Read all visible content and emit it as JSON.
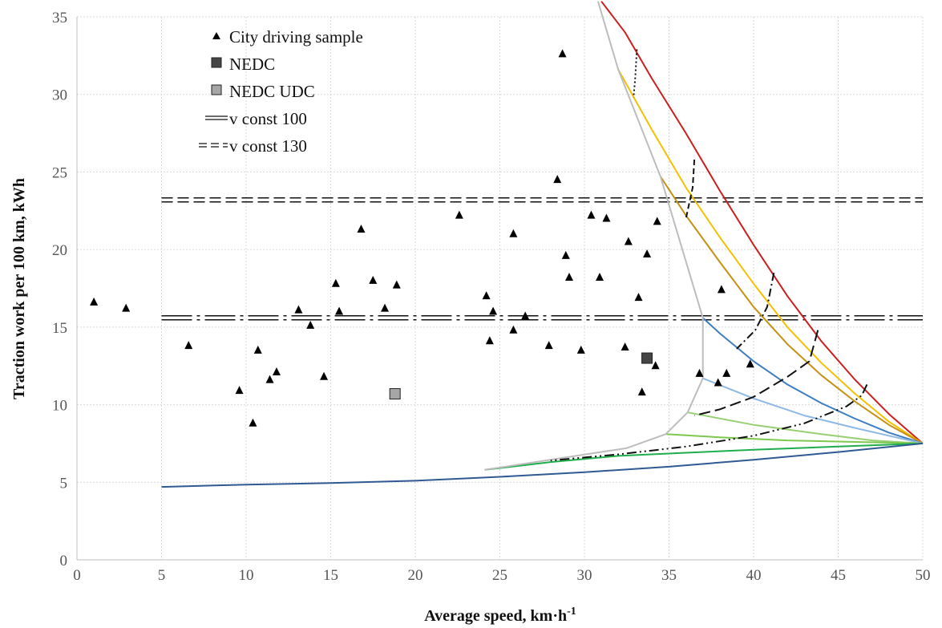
{
  "chart_data": {
    "type": "scatter",
    "xlabel": "Average speed, km·h",
    "xlabel_sup": "-1",
    "ylabel": "Traction work per 100 km, kWh",
    "xlim": [
      0,
      50
    ],
    "ylim": [
      0,
      35
    ],
    "x_ticks": [
      "0",
      "5",
      "10",
      "15",
      "20",
      "25",
      "30",
      "35",
      "40",
      "45",
      "50"
    ],
    "y_ticks": [
      "0",
      "5",
      "10",
      "15",
      "20",
      "25",
      "30",
      "35"
    ],
    "grid": true,
    "legend_position": "top-left",
    "legend": [
      {
        "label": "City driving sample",
        "marker": "triangle"
      },
      {
        "label": "NEDC",
        "marker": "square-dark"
      },
      {
        "label": "NEDC UDC",
        "marker": "square-light"
      },
      {
        "label": "v const 100",
        "marker": "double-line"
      },
      {
        "label": "v const 130",
        "marker": "double-dash"
      }
    ],
    "city_driving_sample": [
      [
        1.0,
        16.6
      ],
      [
        2.9,
        16.2
      ],
      [
        6.6,
        13.8
      ],
      [
        9.6,
        10.9
      ],
      [
        10.4,
        8.8
      ],
      [
        10.7,
        13.5
      ],
      [
        11.4,
        11.6
      ],
      [
        11.8,
        12.1
      ],
      [
        13.1,
        16.1
      ],
      [
        13.8,
        15.1
      ],
      [
        14.6,
        11.8
      ],
      [
        15.3,
        17.8
      ],
      [
        15.5,
        16.0
      ],
      [
        16.8,
        21.3
      ],
      [
        17.5,
        18.0
      ],
      [
        18.2,
        16.2
      ],
      [
        18.9,
        17.7
      ],
      [
        22.6,
        22.2
      ],
      [
        24.2,
        17.0
      ],
      [
        24.4,
        14.1
      ],
      [
        24.6,
        16.0
      ],
      [
        25.8,
        21.0
      ],
      [
        25.8,
        14.8
      ],
      [
        26.5,
        15.7
      ],
      [
        27.9,
        13.8
      ],
      [
        28.4,
        24.5
      ],
      [
        28.7,
        32.6
      ],
      [
        28.9,
        19.6
      ],
      [
        29.1,
        18.2
      ],
      [
        29.8,
        13.5
      ],
      [
        30.4,
        22.2
      ],
      [
        30.9,
        18.2
      ],
      [
        31.3,
        22.0
      ],
      [
        32.4,
        13.7
      ],
      [
        32.6,
        20.5
      ],
      [
        33.2,
        16.9
      ],
      [
        33.4,
        10.8
      ],
      [
        33.7,
        19.7
      ],
      [
        34.2,
        12.5
      ],
      [
        34.3,
        21.8
      ],
      [
        36.8,
        12.0
      ],
      [
        37.9,
        11.4
      ],
      [
        38.1,
        17.4
      ],
      [
        38.4,
        12.0
      ],
      [
        39.8,
        12.6
      ]
    ],
    "nedc": [
      33.7,
      13.0
    ],
    "nedc_udc": [
      18.8,
      10.7
    ],
    "v_const_100": 15.6,
    "v_const_130": 23.2,
    "colors": {
      "red": "#cc1f1f",
      "yellow": "#f5c000",
      "gold": "#c69214",
      "blue": "#3c7dc4",
      "light_blue": "#8fb8e4",
      "light_green": "#98cf72",
      "green_mid": "#7ec850",
      "green": "#1fae4c",
      "navy": "#2f5a93",
      "gray": "#bdbdbd",
      "black": "#111111",
      "nedc_fill": "#454545",
      "udc_fill": "#a6a6a6"
    },
    "curves": [
      {
        "color": "red",
        "points": [
          [
            31.0,
            36.0
          ],
          [
            32.4,
            34.0
          ],
          [
            34.0,
            31.0
          ],
          [
            36.0,
            27.5
          ],
          [
            38.0,
            23.8
          ],
          [
            40.0,
            20.3
          ],
          [
            42.0,
            17.0
          ],
          [
            44.0,
            14.1
          ],
          [
            46.0,
            11.6
          ],
          [
            48.0,
            9.4
          ],
          [
            50.0,
            7.5
          ]
        ]
      },
      {
        "color": "yellow",
        "points": [
          [
            32.0,
            31.6
          ],
          [
            34.0,
            27.7
          ],
          [
            36.0,
            24.0
          ],
          [
            38.0,
            20.8
          ],
          [
            40.0,
            17.8
          ],
          [
            42.0,
            15.0
          ],
          [
            44.0,
            12.7
          ],
          [
            46.0,
            10.7
          ],
          [
            48.0,
            8.9
          ],
          [
            50.0,
            7.5
          ]
        ]
      },
      {
        "color": "gold",
        "points": [
          [
            34.5,
            24.7
          ],
          [
            36.0,
            22.2
          ],
          [
            38.0,
            19.2
          ],
          [
            40.0,
            16.3
          ],
          [
            42.0,
            13.9
          ],
          [
            44.0,
            11.9
          ],
          [
            46.0,
            10.2
          ],
          [
            48.0,
            8.7
          ],
          [
            50.0,
            7.5
          ]
        ]
      },
      {
        "color": "blue",
        "points": [
          [
            37.0,
            15.6
          ],
          [
            38.0,
            14.6
          ],
          [
            40.0,
            12.8
          ],
          [
            42.0,
            11.3
          ],
          [
            44.0,
            10.1
          ],
          [
            46.0,
            9.1
          ],
          [
            48.0,
            8.2
          ],
          [
            50.0,
            7.5
          ]
        ]
      },
      {
        "color": "light_blue",
        "points": [
          [
            37.0,
            11.7
          ],
          [
            40.0,
            10.4
          ],
          [
            43.0,
            9.3
          ],
          [
            46.0,
            8.5
          ],
          [
            48.0,
            8.0
          ],
          [
            50.0,
            7.5
          ]
        ]
      },
      {
        "color": "light_green",
        "points": [
          [
            36.1,
            9.5
          ],
          [
            40.0,
            8.7
          ],
          [
            44.0,
            8.1
          ],
          [
            47.0,
            7.7
          ],
          [
            50.0,
            7.5
          ]
        ]
      },
      {
        "color": "green_mid",
        "points": [
          [
            34.8,
            8.1
          ],
          [
            38.0,
            7.9
          ],
          [
            42.0,
            7.7
          ],
          [
            46.0,
            7.6
          ],
          [
            50.0,
            7.5
          ]
        ]
      },
      {
        "color": "green",
        "points": [
          [
            24.1,
            5.8
          ],
          [
            28.0,
            6.3
          ],
          [
            32.0,
            6.7
          ],
          [
            36.0,
            6.9
          ],
          [
            40.0,
            7.1
          ],
          [
            45.0,
            7.3
          ],
          [
            50.0,
            7.5
          ]
        ]
      },
      {
        "color": "navy",
        "points": [
          [
            5.0,
            4.7
          ],
          [
            10.0,
            4.85
          ],
          [
            15.0,
            4.95
          ],
          [
            20.0,
            5.1
          ],
          [
            25.0,
            5.35
          ],
          [
            30.0,
            5.65
          ],
          [
            35.0,
            6.0
          ],
          [
            40.0,
            6.45
          ],
          [
            45.0,
            6.95
          ],
          [
            50.0,
            7.5
          ]
        ]
      },
      {
        "color": "gray",
        "points": [
          [
            30.8,
            36.0
          ],
          [
            32.0,
            31.6
          ],
          [
            34.5,
            24.7
          ],
          [
            37.0,
            15.6
          ],
          [
            37.0,
            11.7
          ],
          [
            36.1,
            9.5
          ],
          [
            34.8,
            8.1
          ],
          [
            32.5,
            7.2
          ],
          [
            24.1,
            5.8
          ]
        ]
      }
    ],
    "dashed_curves": [
      {
        "style": "dotted",
        "points": [
          [
            33.1,
            32.9
          ],
          [
            33.0,
            31.0
          ],
          [
            32.9,
            29.8
          ]
        ]
      },
      {
        "style": "dashed",
        "points": [
          [
            36.5,
            25.8
          ],
          [
            36.4,
            24.0
          ],
          [
            36.2,
            23.0
          ],
          [
            36.0,
            22.0
          ]
        ]
      },
      {
        "style": "dashdot",
        "points": [
          [
            41.2,
            18.5
          ],
          [
            40.8,
            16.3
          ],
          [
            40.1,
            14.8
          ],
          [
            39.0,
            13.6
          ]
        ]
      },
      {
        "style": "longdash",
        "points": [
          [
            43.8,
            14.8
          ],
          [
            43.3,
            12.8
          ],
          [
            42.0,
            11.8
          ],
          [
            40.0,
            10.5
          ],
          [
            38.0,
            9.7
          ],
          [
            36.5,
            9.3
          ]
        ]
      },
      {
        "style": "dashdotdot",
        "points": [
          [
            46.7,
            11.3
          ],
          [
            46.4,
            10.6
          ],
          [
            45.5,
            9.9
          ],
          [
            43.0,
            8.8
          ],
          [
            40.0,
            8.0
          ],
          [
            36.0,
            7.3
          ],
          [
            32.0,
            6.8
          ],
          [
            28.0,
            6.4
          ]
        ]
      }
    ]
  }
}
